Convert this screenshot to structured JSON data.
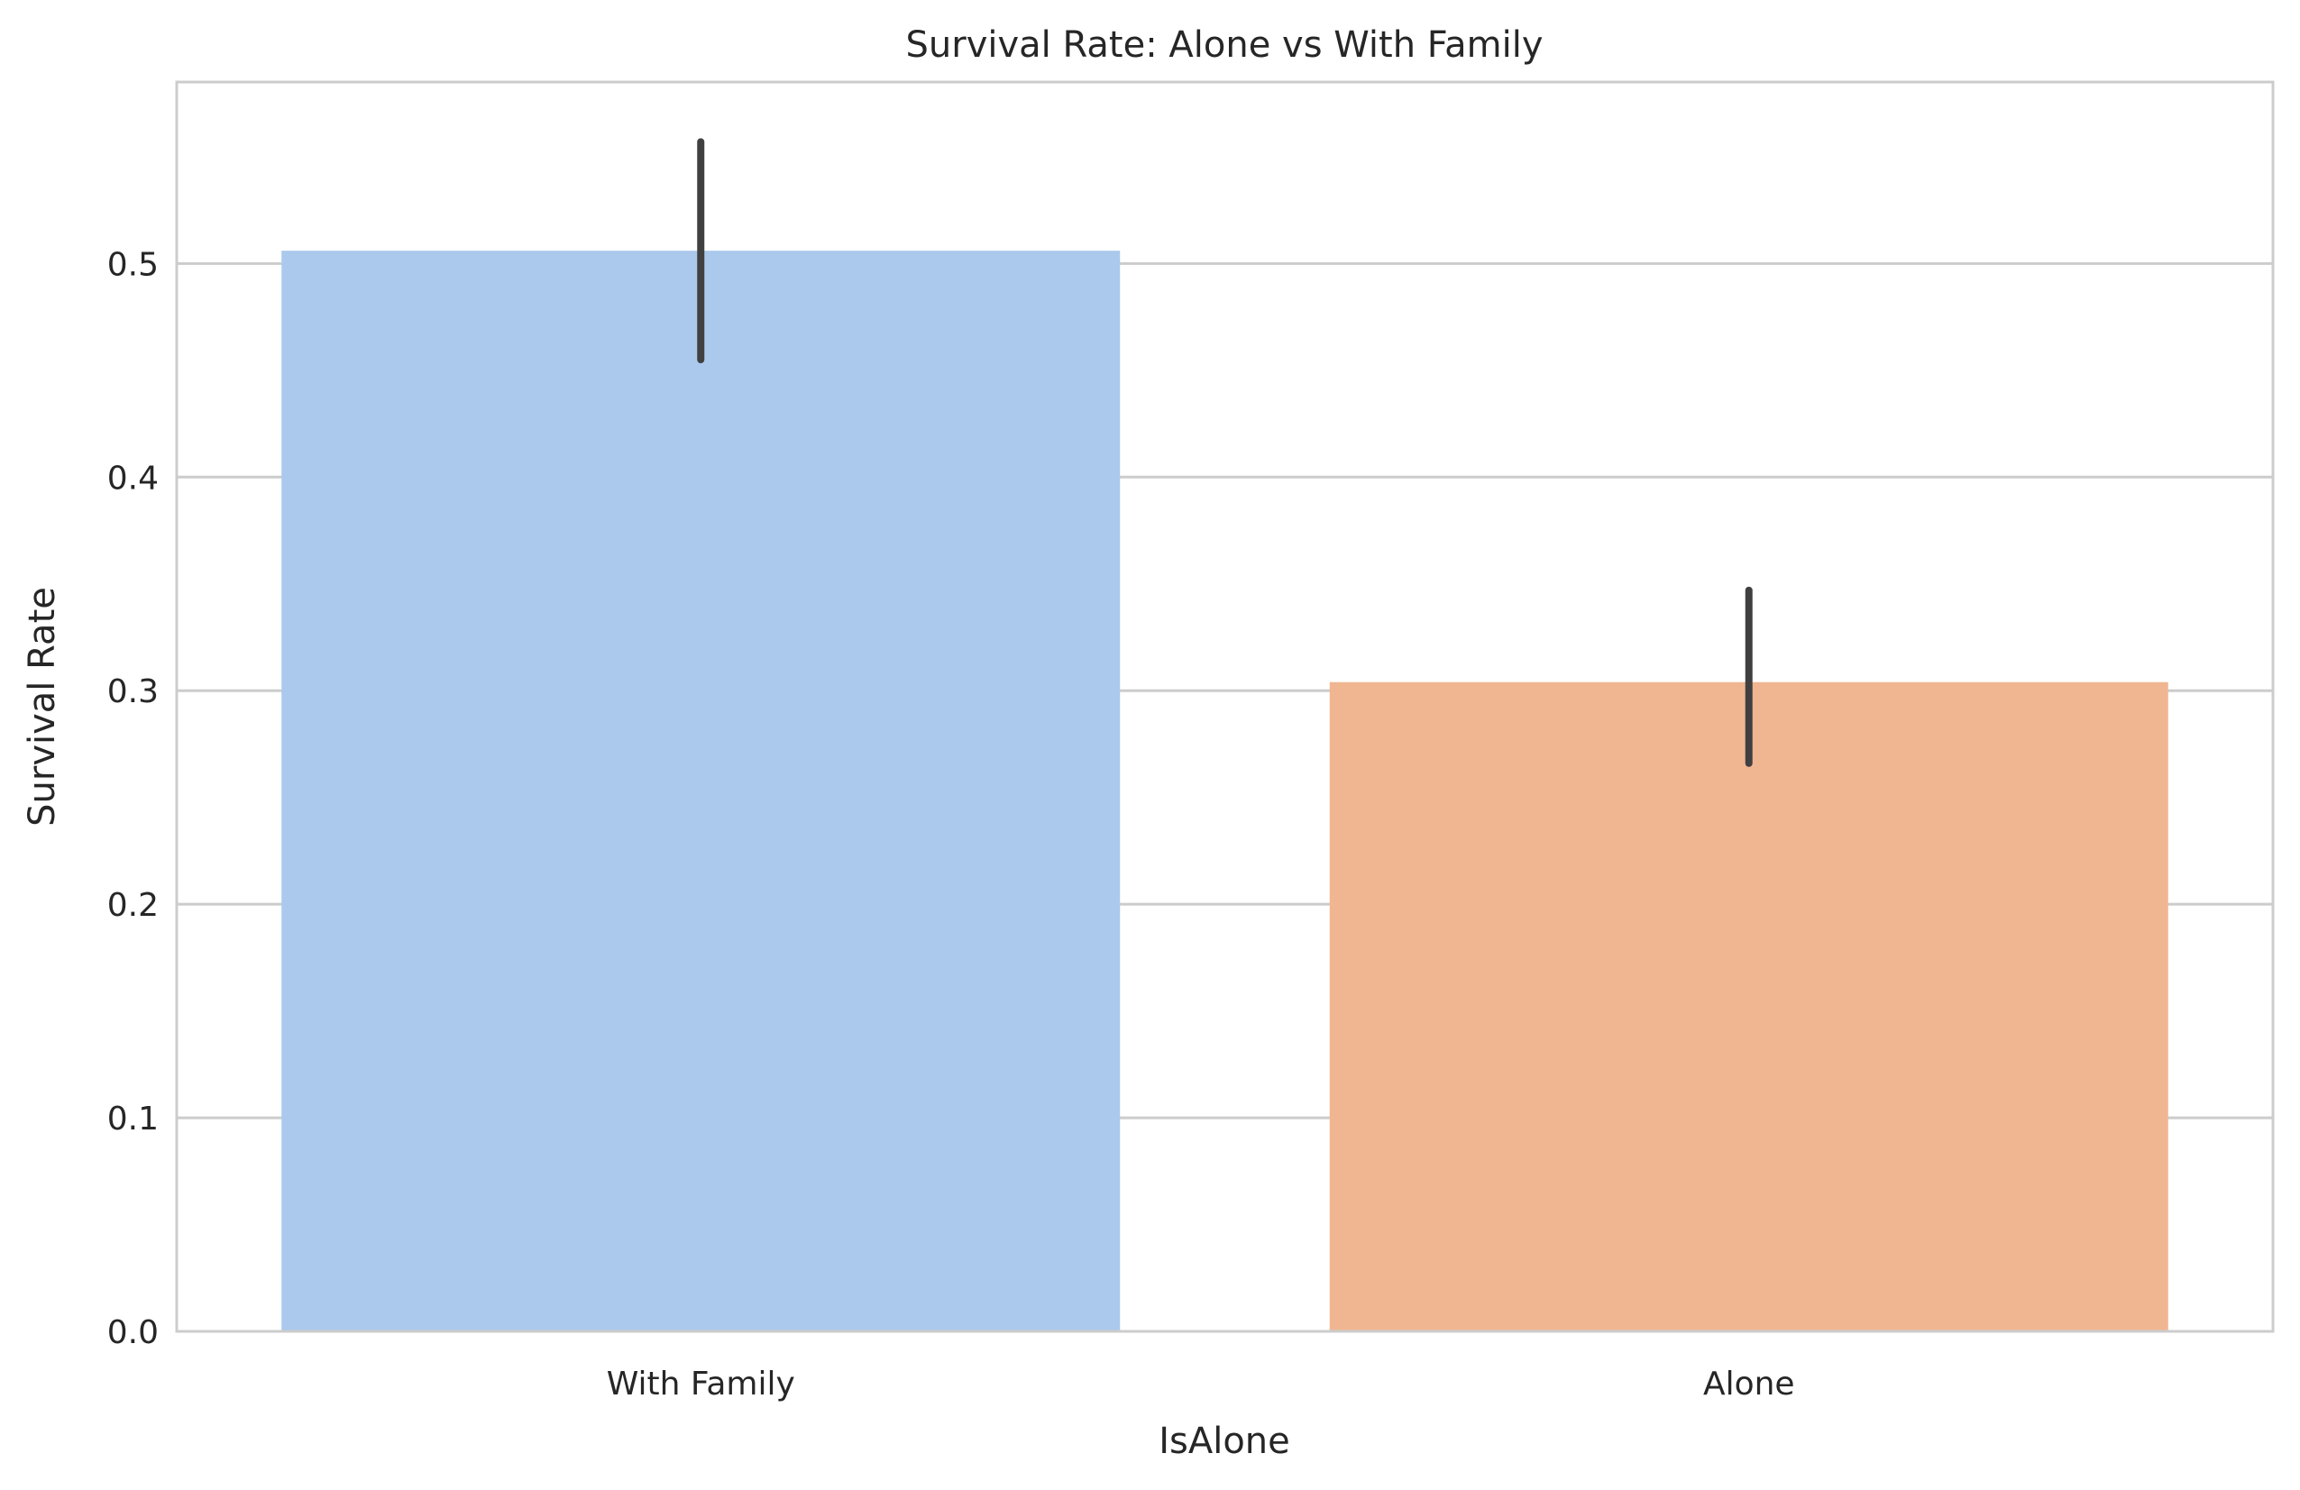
{
  "chart_data": {
    "type": "bar",
    "title": "Survival Rate: Alone vs With Family",
    "xlabel": "IsAlone",
    "ylabel": "Survival Rate",
    "categories": [
      "With Family",
      "Alone"
    ],
    "values": [
      0.506,
      0.304
    ],
    "error_bars": [
      [
        0.455,
        0.557
      ],
      [
        0.266,
        0.347
      ]
    ],
    "colors": [
      "#abc9ec",
      "#f0b692"
    ],
    "error_bar_color": "#404040",
    "ylim": [
      0,
      0.585
    ],
    "yticks": [
      0.0,
      0.1,
      0.2,
      0.3,
      0.4,
      0.5
    ],
    "ytick_labels": [
      "0.0",
      "0.1",
      "0.2",
      "0.3",
      "0.4",
      "0.5"
    ],
    "grid": true,
    "legend": "none"
  }
}
